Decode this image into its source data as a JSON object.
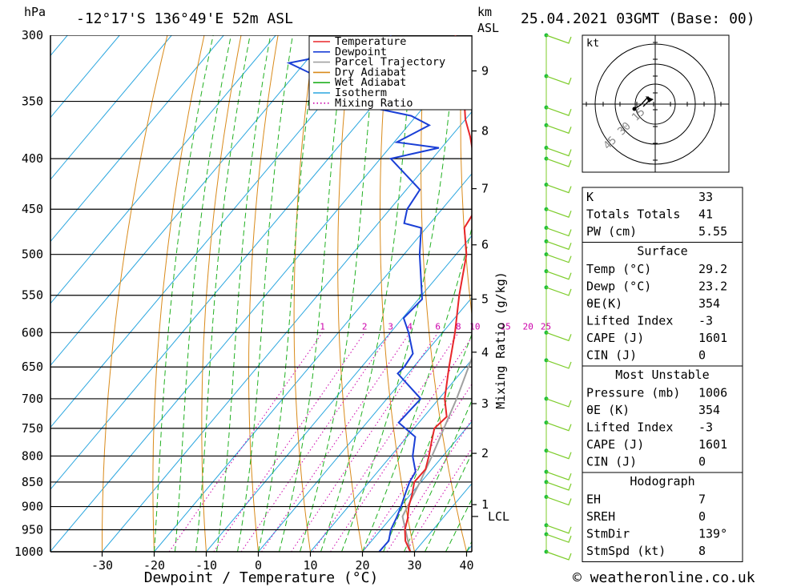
{
  "header": {
    "location": "-12°17'S  136°49'E  52m  ASL",
    "datetime": "25.04.2021  03GMT  (Base: 00)",
    "hpa_label": "hPa",
    "km_label": "km",
    "asl_label": "ASL"
  },
  "footer": {
    "copyright": "© weatheronline.co.uk"
  },
  "chart_data": {
    "type": "skew-t",
    "xlabel": "Dewpoint / Temperature (°C)",
    "ylabel_right": "Mixing Ratio (g/kg)",
    "pressure_levels": [
      300,
      350,
      400,
      450,
      500,
      550,
      600,
      650,
      700,
      750,
      800,
      850,
      900,
      950,
      1000
    ],
    "temperature_ticks": [
      -30,
      -20,
      -10,
      0,
      10,
      20,
      30,
      40
    ],
    "km_ticks": [
      {
        "label": "1",
        "p": 896
      },
      {
        "label": "2",
        "p": 795
      },
      {
        "label": "3",
        "p": 708
      },
      {
        "label": "4",
        "p": 628
      },
      {
        "label": "5",
        "p": 555
      },
      {
        "label": "6",
        "p": 489
      },
      {
        "label": "7",
        "p": 429
      },
      {
        "label": "8",
        "p": 375
      },
      {
        "label": "9",
        "p": 326
      }
    ],
    "lcl": {
      "label": "LCL",
      "p": 921
    },
    "mixing_ratio_labels": [
      "1",
      "2",
      "3",
      "4",
      "6",
      "8",
      "10",
      "15",
      "20",
      "25"
    ],
    "mixing_ratio_values": [
      1,
      2,
      3,
      4,
      6,
      8,
      10,
      15,
      20,
      25
    ],
    "legend": [
      {
        "name": "Temperature",
        "color": "#e8262a",
        "style": "solid"
      },
      {
        "name": "Dewpoint",
        "color": "#1a3fd6",
        "style": "solid"
      },
      {
        "name": "Parcel Trajectory",
        "color": "#a0a0a0",
        "style": "solid"
      },
      {
        "name": "Dry Adiabat",
        "color": "#d98a1a",
        "style": "solid"
      },
      {
        "name": "Wet Adiabat",
        "color": "#21b021",
        "style": "solid"
      },
      {
        "name": "Isotherm",
        "color": "#2aa6df",
        "style": "solid"
      },
      {
        "name": "Mixing Ratio",
        "color": "#cc00aa",
        "style": "dotted"
      }
    ],
    "temperature": [
      {
        "p": 1000,
        "t": 29.2
      },
      {
        "p": 975,
        "t": 26.5
      },
      {
        "p": 950,
        "t": 24.6
      },
      {
        "p": 925,
        "t": 23.3
      },
      {
        "p": 900,
        "t": 21.6
      },
      {
        "p": 875,
        "t": 20.3
      },
      {
        "p": 850,
        "t": 18.7
      },
      {
        "p": 825,
        "t": 18.8
      },
      {
        "p": 800,
        "t": 17.3
      },
      {
        "p": 775,
        "t": 15.6
      },
      {
        "p": 750,
        "t": 13.9
      },
      {
        "p": 730,
        "t": 14.4
      },
      {
        "p": 700,
        "t": 11.1
      },
      {
        "p": 650,
        "t": 6.8
      },
      {
        "p": 600,
        "t": 2.4
      },
      {
        "p": 550,
        "t": -2.8
      },
      {
        "p": 500,
        "t": -8.0
      },
      {
        "p": 470,
        "t": -12.7
      },
      {
        "p": 450,
        "t": -13.5
      },
      {
        "p": 420,
        "t": -18.4
      },
      {
        "p": 400,
        "t": -22.0
      },
      {
        "p": 380,
        "t": -26.3
      },
      {
        "p": 365,
        "t": -30.0
      },
      {
        "p": 330,
        "t": -37.5
      },
      {
        "p": 310,
        "t": -43.0
      },
      {
        "p": 300,
        "t": -45.5
      }
    ],
    "dewpoint": [
      {
        "p": 1000,
        "t": 23.2
      },
      {
        "p": 975,
        "t": 23.3
      },
      {
        "p": 950,
        "t": 21.9
      },
      {
        "p": 925,
        "t": 21.1
      },
      {
        "p": 900,
        "t": 20.1
      },
      {
        "p": 870,
        "t": 18.7
      },
      {
        "p": 850,
        "t": 17.8
      },
      {
        "p": 830,
        "t": 17.3
      },
      {
        "p": 800,
        "t": 14.2
      },
      {
        "p": 765,
        "t": 11.6
      },
      {
        "p": 740,
        "t": 6.1
      },
      {
        "p": 700,
        "t": 6.5
      },
      {
        "p": 660,
        "t": -2.0
      },
      {
        "p": 650,
        "t": -1.8
      },
      {
        "p": 630,
        "t": -2.3
      },
      {
        "p": 600,
        "t": -6.5
      },
      {
        "p": 580,
        "t": -9.8
      },
      {
        "p": 555,
        "t": -9.3
      },
      {
        "p": 500,
        "t": -17.0
      },
      {
        "p": 470,
        "t": -21.0
      },
      {
        "p": 465,
        "t": -25.0
      },
      {
        "p": 450,
        "t": -26.7
      },
      {
        "p": 430,
        "t": -27.4
      },
      {
        "p": 400,
        "t": -38.0
      },
      {
        "p": 390,
        "t": -30.5
      },
      {
        "p": 385,
        "t": -39.5
      },
      {
        "p": 370,
        "t": -36.0
      },
      {
        "p": 362,
        "t": -41.0
      },
      {
        "p": 355,
        "t": -50.0
      },
      {
        "p": 350,
        "t": -52.0
      },
      {
        "p": 348,
        "t": -43.0
      },
      {
        "p": 342,
        "t": -57.0
      },
      {
        "p": 320,
        "t": -73.0
      },
      {
        "p": 305,
        "t": -56.0
      },
      {
        "p": 300,
        "t": -58.0
      }
    ],
    "parcel": [
      {
        "p": 1000,
        "t": 29.2
      },
      {
        "p": 921,
        "t": 22.0
      },
      {
        "p": 850,
        "t": 19.8
      },
      {
        "p": 800,
        "t": 17.9
      },
      {
        "p": 700,
        "t": 13.4
      },
      {
        "p": 600,
        "t": 7.5
      },
      {
        "p": 500,
        "t": -0.5
      },
      {
        "p": 450,
        "t": -5.5
      },
      {
        "p": 400,
        "t": -11.6
      },
      {
        "p": 365,
        "t": -17.0
      }
    ],
    "wind_profile_pressures": [
      300,
      330,
      355,
      370,
      390,
      400,
      425,
      450,
      470,
      485,
      500,
      520,
      540,
      600,
      640,
      700,
      740,
      790,
      830,
      850,
      880,
      940,
      960,
      1000
    ]
  },
  "indices": {
    "rows": [
      {
        "label": "K",
        "value": "33"
      },
      {
        "label": "Totals Totals",
        "value": "41"
      },
      {
        "label": "PW (cm)",
        "value": "5.55"
      }
    ]
  },
  "surface": {
    "title": "Surface",
    "rows": [
      {
        "label": "Temp (°C)",
        "value": "29.2"
      },
      {
        "label": "Dewp (°C)",
        "value": "23.2"
      },
      {
        "label": "θE(K)",
        "value": "354"
      },
      {
        "label": "Lifted Index",
        "value": "-3"
      },
      {
        "label": "CAPE (J)",
        "value": "1601"
      },
      {
        "label": "CIN (J)",
        "value": "0"
      }
    ]
  },
  "most_unstable": {
    "title": "Most Unstable",
    "rows": [
      {
        "label": "Pressure (mb)",
        "value": "1006"
      },
      {
        "label": "θE (K)",
        "value": "354"
      },
      {
        "label": "Lifted Index",
        "value": "-3"
      },
      {
        "label": "CAPE (J)",
        "value": "1601"
      },
      {
        "label": "CIN (J)",
        "value": "0"
      }
    ]
  },
  "hodograph": {
    "title": "Hodograph",
    "unit_label": "kt",
    "ring_labels": [
      "15",
      "30",
      "45"
    ],
    "rows": [
      {
        "label": "EH",
        "value": "7"
      },
      {
        "label": "SREH",
        "value": "0"
      },
      {
        "label": "StmDir",
        "value": "139°"
      },
      {
        "label": "StmSpd (kt)",
        "value": "8"
      }
    ]
  }
}
